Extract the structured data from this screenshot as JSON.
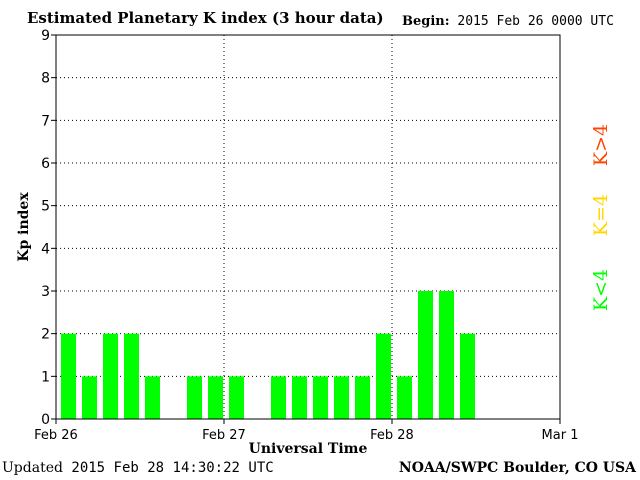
{
  "header": {
    "title": "Estimated Planetary K index (3 hour data)",
    "begin_label": "Begin:",
    "begin_value": "2015 Feb 26 0000 UTC"
  },
  "footer": {
    "updated_label": "Updated",
    "updated_value": "2015 Feb 28 14:30:22 UTC",
    "source": "NOAA/SWPC Boulder, CO USA"
  },
  "legend": {
    "high": {
      "label": "K>4",
      "color": "#ff4500"
    },
    "mid": {
      "label": "K=4",
      "color": "#ffd700"
    },
    "low": {
      "label": "K<4",
      "color": "#00ff00"
    }
  },
  "colors": {
    "bar": "#00ff00",
    "grid": "#000000"
  },
  "chart_data": {
    "type": "bar",
    "title": "Estimated Planetary K index (3 hour data)",
    "xlabel": "Universal Time",
    "ylabel": "Kp index",
    "ylim": [
      0,
      9
    ],
    "yticks": [
      "0",
      "1",
      "2",
      "3",
      "4",
      "5",
      "6",
      "7",
      "8",
      "9"
    ],
    "xticks": [
      "Feb 26",
      "Feb 27",
      "Feb 28",
      "Mar 1"
    ],
    "slots": 24,
    "grid": true,
    "series": [
      {
        "values": [
          2,
          1,
          2,
          2,
          1,
          null,
          1,
          1,
          1,
          null,
          1,
          1,
          1,
          1,
          1,
          2,
          1,
          3,
          3,
          2,
          null,
          null,
          null,
          null
        ]
      }
    ]
  }
}
